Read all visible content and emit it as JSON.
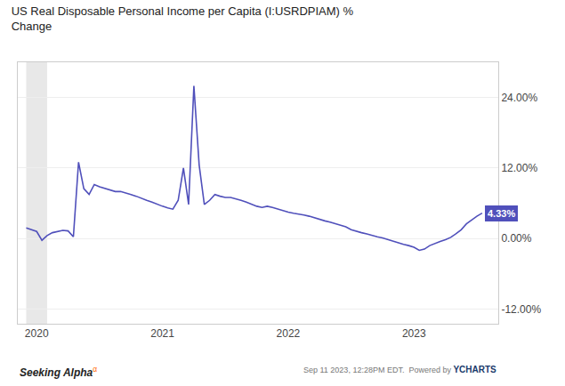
{
  "chart_data": {
    "type": "line",
    "title": "US Real Disposable Personal Income per Capita (I:USRDPIAM) %",
    "subtitle": "Change",
    "color": "#5050bb",
    "grid": true,
    "shaded_region": {
      "x0": 2019.917,
      "x1": 2020.083,
      "color": "#e8e8e8"
    },
    "xlim": [
      2019.85,
      2023.67
    ],
    "xticks": [
      2020,
      2021,
      2022,
      2023
    ],
    "ylim": [
      -14.5,
      30.0
    ],
    "yticks": [
      {
        "value": -12.0,
        "label": "-12.00%"
      },
      {
        "value": 0.0,
        "label": "0.00%"
      },
      {
        "value": 12.0,
        "label": "12.00%"
      },
      {
        "value": 24.0,
        "label": "24.00%"
      }
    ],
    "annotations": [
      {
        "text": "4.33%",
        "color": "#5050bb",
        "font_color": "#ffffff"
      }
    ],
    "footer": [
      {
        "text": "Seeking Alpha"
      },
      {
        "text": "α",
        "color": "#ff6600"
      },
      {
        "text": "Sep 11 2023, 12:28PM EDT.  Powered by "
      },
      {
        "text": "YCHARTS",
        "color": "#1a3a6b"
      }
    ],
    "x": [
      2019.917,
      2019.958,
      2020.0,
      2020.042,
      2020.083,
      2020.125,
      2020.167,
      2020.208,
      2020.25,
      2020.292,
      2020.333,
      2020.375,
      2020.417,
      2020.458,
      2020.5,
      2020.542,
      2020.583,
      2020.625,
      2020.667,
      2020.708,
      2020.75,
      2020.792,
      2020.833,
      2020.875,
      2020.917,
      2020.958,
      2021.0,
      2021.042,
      2021.083,
      2021.125,
      2021.167,
      2021.208,
      2021.25,
      2021.292,
      2021.333,
      2021.375,
      2021.417,
      2021.458,
      2021.5,
      2021.542,
      2021.583,
      2021.625,
      2021.667,
      2021.708,
      2021.75,
      2021.792,
      2021.833,
      2021.875,
      2021.917,
      2021.958,
      2022.0,
      2022.042,
      2022.083,
      2022.125,
      2022.167,
      2022.208,
      2022.25,
      2022.292,
      2022.333,
      2022.375,
      2022.417,
      2022.458,
      2022.5,
      2022.542,
      2022.583,
      2022.625,
      2022.667,
      2022.708,
      2022.75,
      2022.792,
      2022.833,
      2022.875,
      2022.917,
      2022.958,
      2023.0,
      2023.042,
      2023.083,
      2023.125,
      2023.167,
      2023.208,
      2023.25,
      2023.292,
      2023.333,
      2023.375,
      2023.417,
      2023.458,
      2023.5,
      2023.542
    ],
    "values": [
      1.8,
      1.5,
      1.2,
      -0.3,
      0.5,
      1.0,
      1.2,
      1.4,
      1.3,
      0.3,
      13.0,
      8.5,
      7.5,
      9.2,
      8.8,
      8.5,
      8.2,
      8.0,
      8.0,
      7.8,
      7.5,
      7.2,
      6.8,
      6.5,
      6.2,
      5.8,
      5.5,
      5.2,
      5.0,
      6.5,
      12.0,
      5.8,
      26.0,
      12.5,
      5.8,
      6.5,
      7.5,
      7.2,
      7.0,
      7.0,
      6.8,
      6.5,
      6.2,
      5.8,
      5.5,
      5.3,
      5.5,
      5.3,
      5.0,
      4.8,
      4.5,
      4.3,
      4.2,
      4.0,
      3.8,
      3.5,
      3.2,
      3.0,
      2.8,
      2.5,
      2.2,
      2.0,
      1.5,
      1.2,
      1.0,
      0.8,
      0.5,
      0.3,
      0.1,
      -0.2,
      -0.5,
      -0.8,
      -1.0,
      -1.2,
      -1.5,
      -2.0,
      -1.8,
      -1.2,
      -0.8,
      -0.5,
      -0.2,
      0.2,
      0.8,
      1.5,
      2.5,
      3.2,
      3.8,
      4.33
    ]
  }
}
